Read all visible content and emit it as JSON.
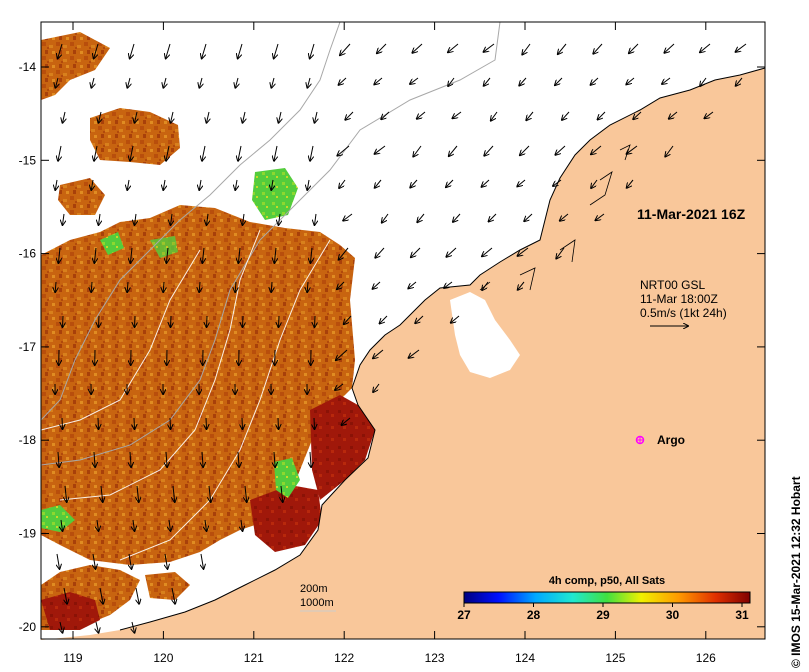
{
  "map": {
    "title_time": "11-Mar-2021 16Z",
    "current_source": {
      "line1": "NRT00 GSL",
      "line2": "11-Mar 18:00Z",
      "line3": "0.5m/s (1kt 24h)"
    },
    "argo_label": "Argo",
    "credit": "© IMOS 15-Mar-2021 12:32 Hobart",
    "contours": {
      "line1": "200m",
      "line2": "1000m"
    },
    "lon_ticks": [
      "119",
      "120",
      "121",
      "122",
      "123",
      "124",
      "125",
      "126"
    ],
    "lat_ticks": [
      "-14",
      "-15",
      "-16",
      "-17",
      "-18",
      "-19",
      "-20"
    ],
    "colorbar": {
      "title": "4h comp, p50, All Sats",
      "ticks": [
        "27",
        "28",
        "29",
        "30",
        "31"
      ]
    },
    "colors": {
      "land": "#f9c79a",
      "sst_warm": "#c9620f",
      "sst_hot": "#a01a08",
      "sst_cool": "#3fc83a",
      "argo": "#ff00ff"
    }
  }
}
